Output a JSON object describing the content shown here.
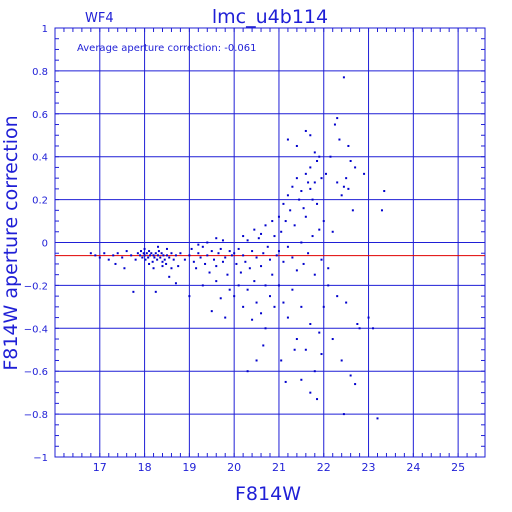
{
  "colors": {
    "axis": "#1f1fd6",
    "grid": "#1f1fd6",
    "points": "#0000cc",
    "reference_line": "#e00000"
  },
  "chart_data": {
    "type": "scatter",
    "title": "lmc_u4b114",
    "subtitle": "WF4",
    "annotation": "Average aperture correction:  -0.061",
    "xlabel": "F814W",
    "ylabel": "F814W aperture correction",
    "xlim": [
      16,
      25.6
    ],
    "ylim": [
      -1,
      1
    ],
    "grid": true,
    "x_ticks": [
      17,
      18,
      19,
      20,
      21,
      22,
      23,
      24,
      25
    ],
    "y_ticks": [
      -1,
      -0.8,
      -0.6,
      -0.4,
      -0.2,
      0,
      0.2,
      0.4,
      0.6,
      0.8,
      1
    ],
    "x_tick_labels": [
      "17",
      "18",
      "19",
      "20",
      "21",
      "22",
      "23",
      "24",
      "25"
    ],
    "y_tick_labels": [
      "−1",
      "−0.8",
      "−0.6",
      "−0.4",
      "−0.2",
      "0",
      "0.2",
      "0.4",
      "0.6",
      "0.8",
      "1"
    ],
    "reference_line": -0.061,
    "points": [
      [
        16.8,
        -0.05
      ],
      [
        16.9,
        -0.06
      ],
      [
        17.0,
        -0.07
      ],
      [
        17.1,
        -0.05
      ],
      [
        17.2,
        -0.08
      ],
      [
        17.3,
        -0.06
      ],
      [
        17.35,
        -0.1
      ],
      [
        17.4,
        -0.05
      ],
      [
        17.5,
        -0.07
      ],
      [
        17.55,
        -0.12
      ],
      [
        17.6,
        -0.04
      ],
      [
        17.7,
        -0.06
      ],
      [
        17.75,
        -0.23
      ],
      [
        17.8,
        -0.08
      ],
      [
        17.85,
        -0.05
      ],
      [
        17.9,
        -0.06
      ],
      [
        17.92,
        -0.04
      ],
      [
        17.95,
        -0.07
      ],
      [
        17.98,
        -0.05
      ],
      [
        18.0,
        -0.06
      ],
      [
        18.02,
        -0.08
      ],
      [
        18.05,
        -0.05
      ],
      [
        18.08,
        -0.07
      ],
      [
        18.1,
        -0.04
      ],
      [
        18.12,
        -0.06
      ],
      [
        18.15,
        -0.05
      ],
      [
        18.18,
        -0.09
      ],
      [
        18.2,
        -0.06
      ],
      [
        18.22,
        -0.07
      ],
      [
        18.25,
        -0.05
      ],
      [
        18.28,
        -0.08
      ],
      [
        18.3,
        -0.06
      ],
      [
        18.32,
        -0.04
      ],
      [
        18.35,
        -0.07
      ],
      [
        18.38,
        -0.05
      ],
      [
        18.4,
        -0.09
      ],
      [
        18.42,
        -0.06
      ],
      [
        18.45,
        -0.08
      ],
      [
        18.48,
        -0.1
      ],
      [
        18.5,
        -0.06
      ],
      [
        18.55,
        -0.07
      ],
      [
        18.6,
        -0.05
      ],
      [
        18.65,
        -0.08
      ],
      [
        18.7,
        -0.06
      ],
      [
        18.75,
        -0.11
      ],
      [
        18.0,
        -0.03
      ],
      [
        18.1,
        -0.1
      ],
      [
        18.2,
        -0.12
      ],
      [
        18.3,
        -0.02
      ],
      [
        18.4,
        -0.11
      ],
      [
        18.5,
        -0.03
      ],
      [
        18.6,
        -0.12
      ],
      [
        18.25,
        -0.23
      ],
      [
        18.55,
        -0.16
      ],
      [
        18.7,
        -0.19
      ],
      [
        18.8,
        -0.05
      ],
      [
        18.9,
        -0.08
      ],
      [
        19.0,
        -0.06
      ],
      [
        19.05,
        -0.03
      ],
      [
        19.1,
        -0.09
      ],
      [
        19.15,
        -0.12
      ],
      [
        19.2,
        -0.05
      ],
      [
        19.25,
        -0.07
      ],
      [
        19.3,
        -0.02
      ],
      [
        19.35,
        -0.1
      ],
      [
        19.4,
        -0.06
      ],
      [
        19.45,
        -0.14
      ],
      [
        19.5,
        -0.04
      ],
      [
        19.55,
        -0.08
      ],
      [
        19.6,
        -0.11
      ],
      [
        19.65,
        -0.05
      ],
      [
        19.7,
        -0.03
      ],
      [
        19.75,
        -0.09
      ],
      [
        19.8,
        -0.07
      ],
      [
        19.85,
        -0.15
      ],
      [
        19.9,
        -0.04
      ],
      [
        19.95,
        -0.06
      ],
      [
        19.0,
        -0.25
      ],
      [
        19.3,
        -0.2
      ],
      [
        19.5,
        -0.32
      ],
      [
        19.7,
        -0.26
      ],
      [
        19.8,
        -0.35
      ],
      [
        19.6,
        -0.18
      ],
      [
        19.9,
        -0.22
      ],
      [
        19.2,
        -0.01
      ],
      [
        19.4,
        0.0
      ],
      [
        19.6,
        0.02
      ],
      [
        19.75,
        0.01
      ],
      [
        20.0,
        -0.05
      ],
      [
        20.05,
        -0.1
      ],
      [
        20.1,
        -0.03
      ],
      [
        20.15,
        -0.14
      ],
      [
        20.2,
        -0.06
      ],
      [
        20.25,
        -0.09
      ],
      [
        20.3,
        0.01
      ],
      [
        20.35,
        -0.12
      ],
      [
        20.4,
        -0.04
      ],
      [
        20.45,
        -0.18
      ],
      [
        20.5,
        -0.07
      ],
      [
        20.55,
        0.02
      ],
      [
        20.6,
        -0.11
      ],
      [
        20.65,
        -0.05
      ],
      [
        20.7,
        -0.2
      ],
      [
        20.75,
        -0.02
      ],
      [
        20.8,
        -0.08
      ],
      [
        20.85,
        -0.15
      ],
      [
        20.9,
        0.03
      ],
      [
        20.95,
        -0.06
      ],
      [
        20.0,
        -0.25
      ],
      [
        20.1,
        -0.2
      ],
      [
        20.2,
        -0.3
      ],
      [
        20.3,
        -0.22
      ],
      [
        20.4,
        -0.36
      ],
      [
        20.5,
        -0.28
      ],
      [
        20.6,
        -0.33
      ],
      [
        20.7,
        -0.4
      ],
      [
        20.8,
        -0.25
      ],
      [
        20.9,
        -0.3
      ],
      [
        20.3,
        -0.6
      ],
      [
        20.5,
        -0.55
      ],
      [
        20.65,
        -0.48
      ],
      [
        20.45,
        0.06
      ],
      [
        20.7,
        0.08
      ],
      [
        20.85,
        0.1
      ],
      [
        20.6,
        0.04
      ],
      [
        20.2,
        0.03
      ],
      [
        21.0,
        -0.04
      ],
      [
        21.05,
        0.05
      ],
      [
        21.1,
        -0.09
      ],
      [
        21.15,
        0.1
      ],
      [
        21.2,
        -0.02
      ],
      [
        21.25,
        0.15
      ],
      [
        21.3,
        -0.07
      ],
      [
        21.35,
        0.08
      ],
      [
        21.4,
        -0.13
      ],
      [
        21.45,
        0.2
      ],
      [
        21.5,
        0.0
      ],
      [
        21.55,
        -0.1
      ],
      [
        21.6,
        0.12
      ],
      [
        21.65,
        -0.05
      ],
      [
        21.7,
        0.25
      ],
      [
        21.75,
        0.03
      ],
      [
        21.8,
        -0.15
      ],
      [
        21.85,
        0.18
      ],
      [
        21.9,
        0.06
      ],
      [
        21.95,
        -0.08
      ],
      [
        21.0,
        0.12
      ],
      [
        21.1,
        0.18
      ],
      [
        21.2,
        0.22
      ],
      [
        21.3,
        0.26
      ],
      [
        21.4,
        0.3
      ],
      [
        21.5,
        0.24
      ],
      [
        21.6,
        0.32
      ],
      [
        21.7,
        0.35
      ],
      [
        21.8,
        0.28
      ],
      [
        21.9,
        0.4
      ],
      [
        21.85,
        0.38
      ],
      [
        21.95,
        0.3
      ],
      [
        21.75,
        0.2
      ],
      [
        21.65,
        0.28
      ],
      [
        21.55,
        0.16
      ],
      [
        21.0,
        -0.2
      ],
      [
        21.1,
        -0.28
      ],
      [
        21.2,
        -0.35
      ],
      [
        21.3,
        -0.22
      ],
      [
        21.4,
        -0.45
      ],
      [
        21.5,
        -0.3
      ],
      [
        21.6,
        -0.5
      ],
      [
        21.7,
        -0.38
      ],
      [
        21.8,
        -0.6
      ],
      [
        21.9,
        -0.42
      ],
      [
        21.05,
        -0.55
      ],
      [
        21.15,
        -0.65
      ],
      [
        21.35,
        -0.5
      ],
      [
        21.5,
        -0.64
      ],
      [
        21.7,
        -0.7
      ],
      [
        21.85,
        -0.73
      ],
      [
        21.95,
        -0.52
      ],
      [
        21.2,
        0.48
      ],
      [
        21.4,
        0.45
      ],
      [
        21.7,
        0.5
      ],
      [
        21.8,
        0.42
      ],
      [
        21.6,
        0.52
      ],
      [
        22.0,
        0.1
      ],
      [
        22.05,
        0.32
      ],
      [
        22.1,
        -0.12
      ],
      [
        22.15,
        0.4
      ],
      [
        22.2,
        0.05
      ],
      [
        22.25,
        0.55
      ],
      [
        22.3,
        0.28
      ],
      [
        22.35,
        0.48
      ],
      [
        22.4,
        0.22
      ],
      [
        22.45,
        0.26
      ],
      [
        22.5,
        0.3
      ],
      [
        22.55,
        0.25
      ],
      [
        22.6,
        0.38
      ],
      [
        22.65,
        0.15
      ],
      [
        22.7,
        0.35
      ],
      [
        22.0,
        -0.3
      ],
      [
        22.1,
        -0.2
      ],
      [
        22.2,
        -0.45
      ],
      [
        22.3,
        -0.25
      ],
      [
        22.4,
        -0.55
      ],
      [
        22.5,
        -0.28
      ],
      [
        22.6,
        -0.62
      ],
      [
        22.7,
        -0.66
      ],
      [
        22.45,
        -0.8
      ],
      [
        22.3,
        0.58
      ],
      [
        22.45,
        0.77
      ],
      [
        22.55,
        0.45
      ],
      [
        22.75,
        -0.38
      ],
      [
        22.8,
        -0.4
      ],
      [
        23.0,
        -0.35
      ],
      [
        23.1,
        -0.4
      ],
      [
        23.3,
        0.15
      ],
      [
        23.35,
        0.24
      ],
      [
        23.2,
        -0.82
      ],
      [
        22.9,
        0.32
      ]
    ]
  }
}
